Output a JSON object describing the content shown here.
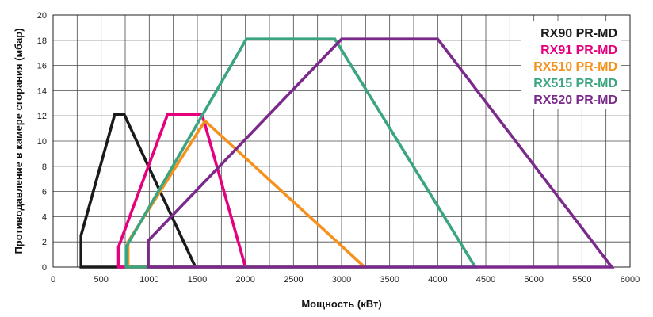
{
  "chart_data": {
    "type": "area",
    "title": "",
    "xlabel": "Мощность  (кВт)",
    "ylabel": "Противодавление в камере сгорания (мбар)",
    "xlim": [
      0,
      6000
    ],
    "ylim": [
      0,
      20
    ],
    "xticks": [
      0,
      500,
      1000,
      1500,
      2000,
      2500,
      3000,
      3500,
      4000,
      4500,
      5000,
      5500,
      6000
    ],
    "yticks": [
      0,
      2,
      4,
      6,
      8,
      10,
      12,
      14,
      16,
      18,
      20
    ],
    "x_minor_step": 250,
    "grid": true,
    "legend_position": "top-right",
    "series": [
      {
        "name": "RX90 PR-MD",
        "color": "#1a1a1a",
        "points": [
          [
            290,
            0
          ],
          [
            290,
            2.5
          ],
          [
            640,
            12.1
          ],
          [
            740,
            12.1
          ],
          [
            1480,
            0
          ]
        ]
      },
      {
        "name": "RX91 PR-MD",
        "color": "#e6007e",
        "points": [
          [
            680,
            0
          ],
          [
            680,
            1.6
          ],
          [
            1190,
            12.1
          ],
          [
            1550,
            12.1
          ],
          [
            2000,
            0
          ]
        ]
      },
      {
        "name": "RX510 PR-MD",
        "color": "#f5921e",
        "points": [
          [
            780,
            0
          ],
          [
            780,
            2.0
          ],
          [
            1580,
            11.6
          ],
          [
            3240,
            0
          ]
        ]
      },
      {
        "name": "RX515 PR-MD",
        "color": "#3aa57e",
        "points": [
          [
            760,
            0
          ],
          [
            760,
            1.6
          ],
          [
            2010,
            18.1
          ],
          [
            2930,
            18.1
          ],
          [
            4390,
            0
          ]
        ]
      },
      {
        "name": "RX520 PR-MD",
        "color": "#7b2a8b",
        "points": [
          [
            990,
            0
          ],
          [
            990,
            2.1
          ],
          [
            3000,
            18.1
          ],
          [
            4000,
            18.1
          ],
          [
            5810,
            0
          ]
        ]
      }
    ]
  }
}
